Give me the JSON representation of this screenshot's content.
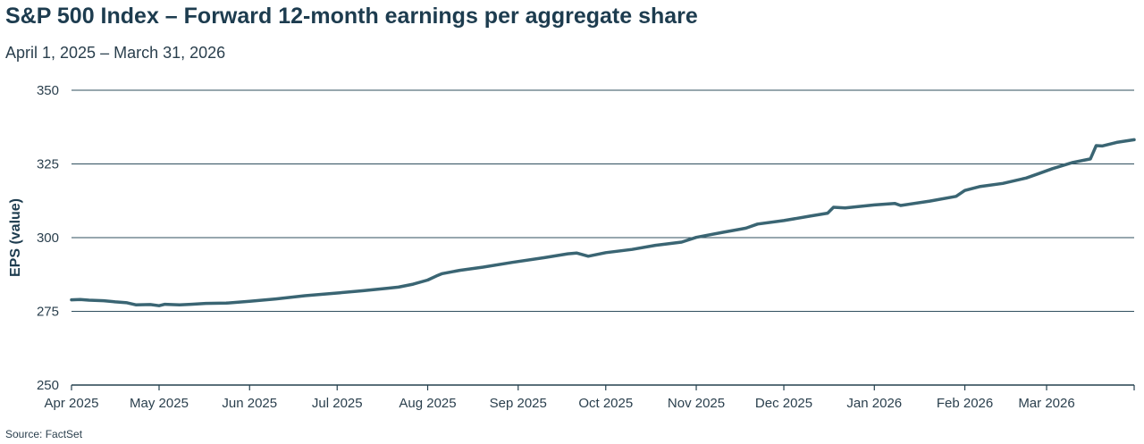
{
  "chart_data": {
    "type": "line",
    "title": "S&P 500 Index – Forward 12-month earnings per aggregate share",
    "subtitle": "April 1, 2025 – March 31, 2026",
    "ylabel": "EPS (value)",
    "xlabel": "",
    "source": "Source: FactSet",
    "ylim": [
      250,
      350
    ],
    "yticks": [
      250,
      275,
      300,
      325,
      350
    ],
    "xlim": [
      "2025-04-01",
      "2026-03-31"
    ],
    "xticks": [
      {
        "date": "2025-04-01",
        "label": "Apr 2025"
      },
      {
        "date": "2025-05-01",
        "label": "May 2025"
      },
      {
        "date": "2025-06-01",
        "label": "Jun 2025"
      },
      {
        "date": "2025-07-01",
        "label": "Jul 2025"
      },
      {
        "date": "2025-08-01",
        "label": "Aug 2025"
      },
      {
        "date": "2025-09-01",
        "label": "Sep 2025"
      },
      {
        "date": "2025-10-01",
        "label": "Oct 2025"
      },
      {
        "date": "2025-11-01",
        "label": "Nov 2025"
      },
      {
        "date": "2025-12-01",
        "label": "Dec 2025"
      },
      {
        "date": "2026-01-01",
        "label": "Jan 2026"
      },
      {
        "date": "2026-02-01",
        "label": "Feb 2026"
      },
      {
        "date": "2026-03-01",
        "label": "Mar 2026"
      }
    ],
    "grid": "horizontal",
    "line_color": "#3a6573",
    "series": [
      {
        "points": [
          [
            "2025-04-01",
            278.9
          ],
          [
            "2025-04-04",
            279.0
          ],
          [
            "2025-04-07",
            278.8
          ],
          [
            "2025-04-12",
            278.6
          ],
          [
            "2025-04-16",
            278.2
          ],
          [
            "2025-04-20",
            277.9
          ],
          [
            "2025-04-23",
            277.2
          ],
          [
            "2025-04-28",
            277.3
          ],
          [
            "2025-05-01",
            276.9
          ],
          [
            "2025-05-03",
            277.4
          ],
          [
            "2025-05-08",
            277.2
          ],
          [
            "2025-05-12",
            277.4
          ],
          [
            "2025-05-17",
            277.7
          ],
          [
            "2025-05-24",
            277.8
          ],
          [
            "2025-06-01",
            278.4
          ],
          [
            "2025-06-10",
            279.2
          ],
          [
            "2025-06-20",
            280.3
          ],
          [
            "2025-07-01",
            281.2
          ],
          [
            "2025-07-10",
            282.0
          ],
          [
            "2025-07-18",
            282.8
          ],
          [
            "2025-07-22",
            283.2
          ],
          [
            "2025-07-27",
            284.2
          ],
          [
            "2025-08-01",
            285.6
          ],
          [
            "2025-08-04",
            287.0
          ],
          [
            "2025-08-06",
            287.8
          ],
          [
            "2025-08-12",
            288.9
          ],
          [
            "2025-08-20",
            290.0
          ],
          [
            "2025-08-30",
            291.6
          ],
          [
            "2025-09-10",
            293.2
          ],
          [
            "2025-09-18",
            294.5
          ],
          [
            "2025-09-21",
            294.8
          ],
          [
            "2025-09-25",
            293.7
          ],
          [
            "2025-10-01",
            294.9
          ],
          [
            "2025-10-10",
            296.0
          ],
          [
            "2025-10-18",
            297.4
          ],
          [
            "2025-10-27",
            298.5
          ],
          [
            "2025-11-01",
            300.1
          ],
          [
            "2025-11-10",
            301.8
          ],
          [
            "2025-11-18",
            303.2
          ],
          [
            "2025-11-22",
            304.6
          ],
          [
            "2025-12-01",
            305.8
          ],
          [
            "2025-12-10",
            307.3
          ],
          [
            "2025-12-16",
            308.3
          ],
          [
            "2025-12-18",
            310.3
          ],
          [
            "2025-12-22",
            310.1
          ],
          [
            "2026-01-01",
            311.1
          ],
          [
            "2026-01-08",
            311.6
          ],
          [
            "2026-01-10",
            310.9
          ],
          [
            "2026-01-20",
            312.4
          ],
          [
            "2026-01-29",
            314.0
          ],
          [
            "2026-02-01",
            316.0
          ],
          [
            "2026-02-06",
            317.3
          ],
          [
            "2026-02-14",
            318.4
          ],
          [
            "2026-02-22",
            320.2
          ],
          [
            "2026-02-26",
            321.6
          ],
          [
            "2026-03-03",
            323.4
          ],
          [
            "2026-03-10",
            325.5
          ],
          [
            "2026-03-16",
            326.7
          ],
          [
            "2026-03-18",
            331.2
          ],
          [
            "2026-03-20",
            331.1
          ],
          [
            "2026-03-25",
            332.3
          ],
          [
            "2026-03-31",
            333.2
          ]
        ]
      }
    ]
  }
}
